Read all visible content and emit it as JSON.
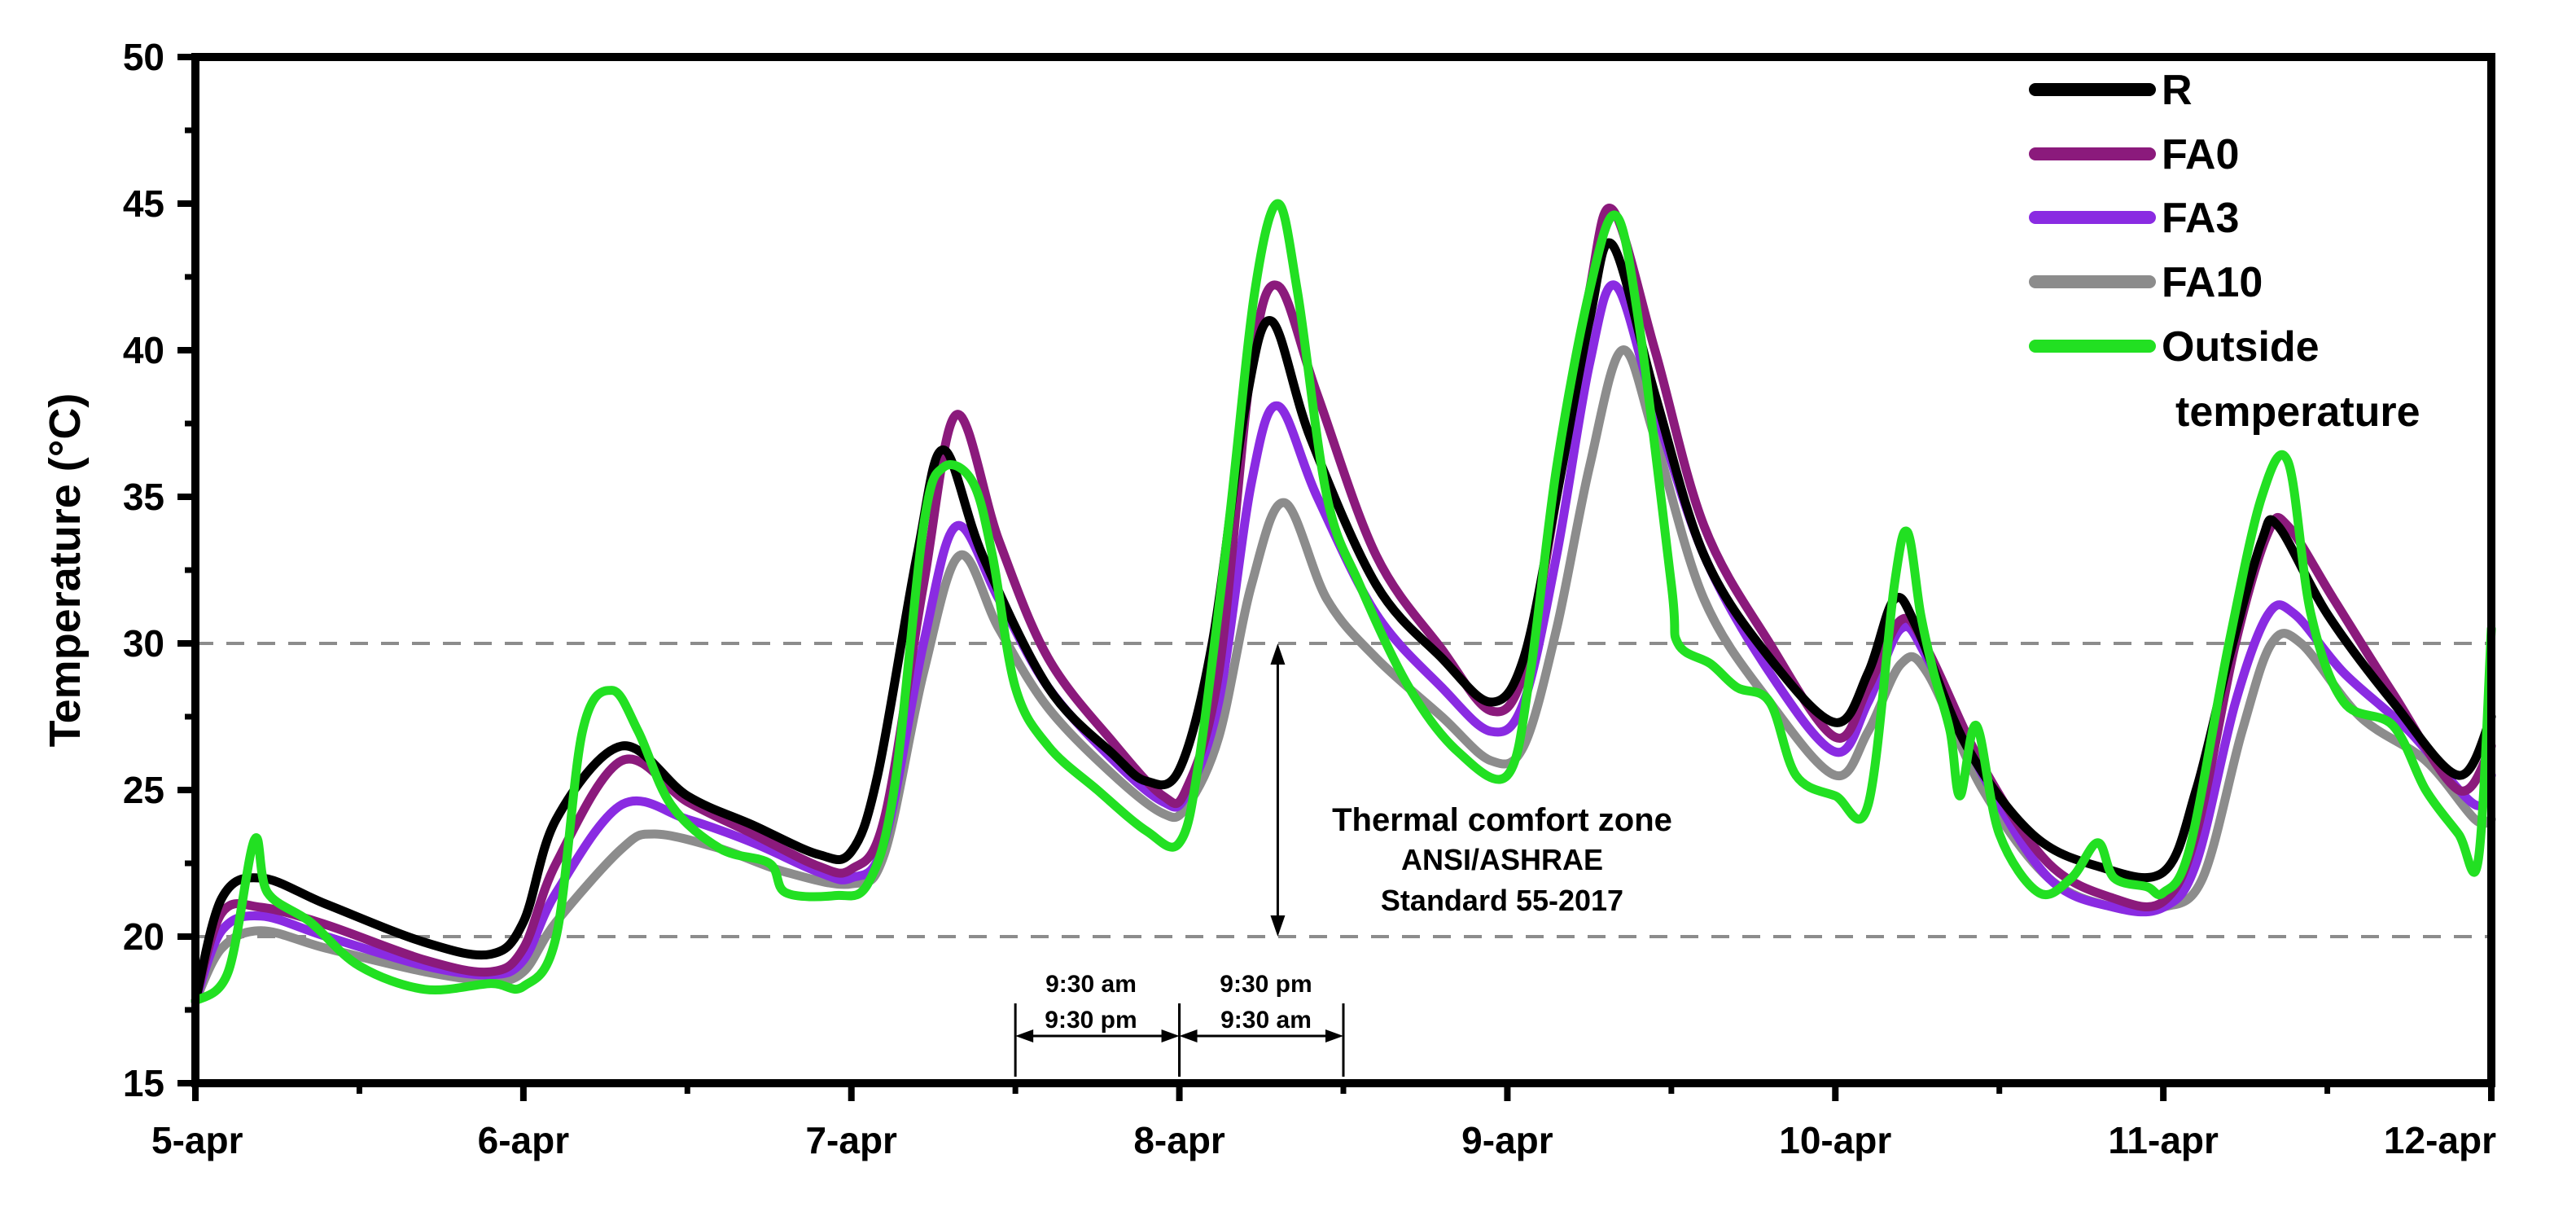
{
  "chart_data": {
    "type": "line",
    "title": "",
    "xlabel": "",
    "ylabel": "Temperature (°C)",
    "xlim": [
      0,
      7
    ],
    "ylim": [
      15,
      50
    ],
    "x_tick_labels": [
      "5-apr",
      "6-apr",
      "7-apr",
      "8-apr",
      "9-apr",
      "10-apr",
      "11-apr",
      "12-apr"
    ],
    "y_ticks": [
      15,
      20,
      25,
      30,
      35,
      40,
      45,
      50
    ],
    "grid": false,
    "legend_position": "top-right",
    "reference_lines": [
      {
        "y": 30,
        "style": "dashed",
        "color": "#8c8c8c"
      },
      {
        "y": 20,
        "style": "dashed",
        "color": "#8c8c8c"
      }
    ],
    "comfort_zone": {
      "x": 3.3,
      "y_from": 20,
      "y_to": 30,
      "lines": [
        "Thermal comfort zone",
        "ANSI/ASHRAE",
        "Standard 55-2017"
      ]
    },
    "interval_annotations": [
      {
        "from": 2.5,
        "to": 3.0,
        "top": "9:30 am",
        "bottom": "9:30 pm"
      },
      {
        "from": 3.0,
        "to": 3.5,
        "top": "9:30 pm",
        "bottom": "9:30 am"
      }
    ],
    "series": [
      {
        "name": "R",
        "color": "#000000",
        "points": [
          [
            0,
            17.8
          ],
          [
            0.08,
            21.3
          ],
          [
            0.2,
            22.0
          ],
          [
            0.4,
            21.1
          ],
          [
            0.7,
            19.8
          ],
          [
            0.9,
            19.4
          ],
          [
            1.0,
            20.5
          ],
          [
            1.1,
            24.0
          ],
          [
            1.3,
            26.5
          ],
          [
            1.5,
            24.8
          ],
          [
            1.7,
            23.8
          ],
          [
            1.9,
            22.8
          ],
          [
            2.0,
            22.9
          ],
          [
            2.08,
            25.5
          ],
          [
            2.2,
            33.0
          ],
          [
            2.28,
            36.6
          ],
          [
            2.4,
            33.0
          ],
          [
            2.6,
            28.5
          ],
          [
            2.8,
            26.2
          ],
          [
            2.9,
            25.3
          ],
          [
            3.0,
            25.7
          ],
          [
            3.1,
            30.0
          ],
          [
            3.2,
            38.0
          ],
          [
            3.28,
            41.0
          ],
          [
            3.4,
            37.0
          ],
          [
            3.6,
            32.0
          ],
          [
            3.8,
            29.5
          ],
          [
            3.95,
            28.0
          ],
          [
            4.05,
            29.5
          ],
          [
            4.15,
            35.0
          ],
          [
            4.25,
            41.0
          ],
          [
            4.32,
            43.6
          ],
          [
            4.45,
            38.5
          ],
          [
            4.6,
            33.0
          ],
          [
            4.8,
            29.5
          ],
          [
            5.0,
            27.3
          ],
          [
            5.1,
            29.0
          ],
          [
            5.18,
            31.5
          ],
          [
            5.25,
            30.5
          ],
          [
            5.4,
            26.5
          ],
          [
            5.6,
            23.5
          ],
          [
            5.8,
            22.4
          ],
          [
            6.0,
            22.2
          ],
          [
            6.1,
            25.0
          ],
          [
            6.2,
            29.5
          ],
          [
            6.3,
            33.5
          ],
          [
            6.35,
            34.0
          ],
          [
            6.5,
            31.0
          ],
          [
            6.7,
            28.0
          ],
          [
            6.9,
            25.5
          ],
          [
            7.0,
            27.5
          ]
        ]
      },
      {
        "name": "FA0",
        "color": "#8b1a7c",
        "points": [
          [
            0,
            17.8
          ],
          [
            0.08,
            20.8
          ],
          [
            0.2,
            21.0
          ],
          [
            0.4,
            20.4
          ],
          [
            0.7,
            19.2
          ],
          [
            0.9,
            18.8
          ],
          [
            1.0,
            19.6
          ],
          [
            1.1,
            22.5
          ],
          [
            1.3,
            26.0
          ],
          [
            1.5,
            24.6
          ],
          [
            1.7,
            23.5
          ],
          [
            1.9,
            22.4
          ],
          [
            2.0,
            22.3
          ],
          [
            2.1,
            24.0
          ],
          [
            2.22,
            32.0
          ],
          [
            2.32,
            37.8
          ],
          [
            2.45,
            33.5
          ],
          [
            2.6,
            29.5
          ],
          [
            2.8,
            26.6
          ],
          [
            2.95,
            24.8
          ],
          [
            3.02,
            25.0
          ],
          [
            3.12,
            29.0
          ],
          [
            3.22,
            39.5
          ],
          [
            3.3,
            42.2
          ],
          [
            3.42,
            38.5
          ],
          [
            3.6,
            33.0
          ],
          [
            3.8,
            29.8
          ],
          [
            3.95,
            27.7
          ],
          [
            4.05,
            29.0
          ],
          [
            4.15,
            35.0
          ],
          [
            4.25,
            42.0
          ],
          [
            4.32,
            44.8
          ],
          [
            4.45,
            40.0
          ],
          [
            4.6,
            34.0
          ],
          [
            4.8,
            30.0
          ],
          [
            5.0,
            26.8
          ],
          [
            5.1,
            28.5
          ],
          [
            5.2,
            30.8
          ],
          [
            5.28,
            29.8
          ],
          [
            5.45,
            25.8
          ],
          [
            5.65,
            22.5
          ],
          [
            5.85,
            21.3
          ],
          [
            6.0,
            21.2
          ],
          [
            6.1,
            23.5
          ],
          [
            6.22,
            30.0
          ],
          [
            6.32,
            33.8
          ],
          [
            6.38,
            34.0
          ],
          [
            6.52,
            31.5
          ],
          [
            6.7,
            28.3
          ],
          [
            6.9,
            25.0
          ],
          [
            7.0,
            26.5
          ]
        ]
      },
      {
        "name": "FA3",
        "color": "#8a2be2",
        "points": [
          [
            0,
            17.8
          ],
          [
            0.08,
            20.2
          ],
          [
            0.2,
            20.7
          ],
          [
            0.4,
            20.0
          ],
          [
            0.7,
            19.0
          ],
          [
            0.9,
            18.7
          ],
          [
            1.0,
            19.2
          ],
          [
            1.1,
            21.5
          ],
          [
            1.3,
            24.5
          ],
          [
            1.5,
            24.0
          ],
          [
            1.7,
            23.2
          ],
          [
            1.9,
            22.2
          ],
          [
            2.0,
            22.0
          ],
          [
            2.1,
            23.2
          ],
          [
            2.22,
            30.0
          ],
          [
            2.32,
            34.0
          ],
          [
            2.45,
            31.5
          ],
          [
            2.6,
            28.5
          ],
          [
            2.8,
            26.0
          ],
          [
            2.95,
            24.6
          ],
          [
            3.02,
            24.8
          ],
          [
            3.12,
            28.0
          ],
          [
            3.22,
            35.5
          ],
          [
            3.3,
            38.1
          ],
          [
            3.42,
            35.0
          ],
          [
            3.6,
            31.0
          ],
          [
            3.8,
            28.5
          ],
          [
            3.95,
            27.0
          ],
          [
            4.05,
            28.0
          ],
          [
            4.15,
            33.0
          ],
          [
            4.25,
            39.5
          ],
          [
            4.33,
            42.2
          ],
          [
            4.45,
            38.0
          ],
          [
            4.6,
            33.0
          ],
          [
            4.8,
            29.0
          ],
          [
            5.0,
            26.3
          ],
          [
            5.1,
            28.0
          ],
          [
            5.2,
            30.5
          ],
          [
            5.28,
            29.5
          ],
          [
            5.45,
            25.5
          ],
          [
            5.65,
            22.0
          ],
          [
            5.85,
            21.0
          ],
          [
            6.0,
            21.0
          ],
          [
            6.1,
            22.5
          ],
          [
            6.22,
            28.0
          ],
          [
            6.32,
            31.0
          ],
          [
            6.4,
            31.0
          ],
          [
            6.55,
            29.0
          ],
          [
            6.75,
            27.0
          ],
          [
            6.95,
            24.5
          ],
          [
            7.0,
            25.5
          ]
        ]
      },
      {
        "name": "FA10",
        "color": "#8c8c8c",
        "points": [
          [
            0,
            17.8
          ],
          [
            0.08,
            19.6
          ],
          [
            0.2,
            20.2
          ],
          [
            0.4,
            19.6
          ],
          [
            0.7,
            18.8
          ],
          [
            0.9,
            18.5
          ],
          [
            1.0,
            18.8
          ],
          [
            1.1,
            20.5
          ],
          [
            1.3,
            23.0
          ],
          [
            1.4,
            23.5
          ],
          [
            1.6,
            23.0
          ],
          [
            1.8,
            22.2
          ],
          [
            2.0,
            21.8
          ],
          [
            2.1,
            22.8
          ],
          [
            2.22,
            29.0
          ],
          [
            2.33,
            33.0
          ],
          [
            2.45,
            30.5
          ],
          [
            2.6,
            27.8
          ],
          [
            2.8,
            25.5
          ],
          [
            2.95,
            24.2
          ],
          [
            3.02,
            24.4
          ],
          [
            3.12,
            26.8
          ],
          [
            3.22,
            32.0
          ],
          [
            3.32,
            34.8
          ],
          [
            3.45,
            31.5
          ],
          [
            3.6,
            29.5
          ],
          [
            3.8,
            27.5
          ],
          [
            3.95,
            26.0
          ],
          [
            4.05,
            26.5
          ],
          [
            4.15,
            30.5
          ],
          [
            4.25,
            36.0
          ],
          [
            4.35,
            40.0
          ],
          [
            4.45,
            37.0
          ],
          [
            4.6,
            31.5
          ],
          [
            4.8,
            28.0
          ],
          [
            5.0,
            25.5
          ],
          [
            5.1,
            27.0
          ],
          [
            5.2,
            29.3
          ],
          [
            5.28,
            29.0
          ],
          [
            5.45,
            25.0
          ],
          [
            5.65,
            22.0
          ],
          [
            5.85,
            21.0
          ],
          [
            6.0,
            21.0
          ],
          [
            6.12,
            22.0
          ],
          [
            6.24,
            27.0
          ],
          [
            6.33,
            30.0
          ],
          [
            6.42,
            30.0
          ],
          [
            6.6,
            27.5
          ],
          [
            6.8,
            26.0
          ],
          [
            6.95,
            24.0
          ],
          [
            7.0,
            24.0
          ]
        ]
      },
      {
        "name": "Outside temperature",
        "color": "#22e022",
        "points": [
          [
            0,
            17.8
          ],
          [
            0.1,
            18.8
          ],
          [
            0.18,
            23.3
          ],
          [
            0.22,
            21.5
          ],
          [
            0.35,
            20.5
          ],
          [
            0.5,
            19.0
          ],
          [
            0.7,
            18.2
          ],
          [
            0.9,
            18.4
          ],
          [
            1.0,
            18.3
          ],
          [
            1.1,
            20.0
          ],
          [
            1.18,
            27.0
          ],
          [
            1.27,
            28.4
          ],
          [
            1.35,
            27.0
          ],
          [
            1.45,
            24.5
          ],
          [
            1.6,
            23.0
          ],
          [
            1.75,
            22.5
          ],
          [
            1.8,
            21.5
          ],
          [
            1.95,
            21.4
          ],
          [
            2.05,
            21.8
          ],
          [
            2.13,
            25.0
          ],
          [
            2.22,
            34.0
          ],
          [
            2.28,
            36.0
          ],
          [
            2.37,
            35.5
          ],
          [
            2.43,
            33.0
          ],
          [
            2.5,
            28.5
          ],
          [
            2.6,
            26.5
          ],
          [
            2.75,
            25.0
          ],
          [
            2.9,
            23.6
          ],
          [
            3.0,
            23.2
          ],
          [
            3.06,
            26.0
          ],
          [
            3.15,
            34.0
          ],
          [
            3.23,
            42.0
          ],
          [
            3.3,
            45.0
          ],
          [
            3.36,
            42.0
          ],
          [
            3.45,
            35.0
          ],
          [
            3.55,
            32.0
          ],
          [
            3.7,
            28.5
          ],
          [
            3.85,
            26.3
          ],
          [
            4.0,
            25.5
          ],
          [
            4.07,
            29.0
          ],
          [
            4.15,
            36.0
          ],
          [
            4.25,
            42.0
          ],
          [
            4.33,
            44.6
          ],
          [
            4.4,
            41.0
          ],
          [
            4.5,
            32.0
          ],
          [
            4.52,
            30.0
          ],
          [
            4.62,
            29.3
          ],
          [
            4.7,
            28.5
          ],
          [
            4.8,
            28.0
          ],
          [
            4.88,
            25.5
          ],
          [
            5.0,
            24.8
          ],
          [
            5.1,
            24.5
          ],
          [
            5.18,
            32.0
          ],
          [
            5.22,
            33.8
          ],
          [
            5.26,
            31.0
          ],
          [
            5.3,
            29.0
          ],
          [
            5.35,
            27.0
          ],
          [
            5.38,
            24.8
          ],
          [
            5.43,
            27.2
          ],
          [
            5.5,
            23.5
          ],
          [
            5.62,
            21.5
          ],
          [
            5.72,
            22.0
          ],
          [
            5.8,
            23.2
          ],
          [
            5.85,
            22.0
          ],
          [
            5.95,
            21.7
          ],
          [
            6.0,
            21.5
          ],
          [
            6.08,
            23.0
          ],
          [
            6.2,
            30.0
          ],
          [
            6.3,
            35.0
          ],
          [
            6.38,
            36.2
          ],
          [
            6.45,
            31.0
          ],
          [
            6.55,
            28.0
          ],
          [
            6.7,
            27.2
          ],
          [
            6.8,
            25.0
          ],
          [
            6.9,
            23.5
          ],
          [
            6.96,
            22.6
          ],
          [
            7.0,
            30.5
          ]
        ]
      }
    ]
  }
}
